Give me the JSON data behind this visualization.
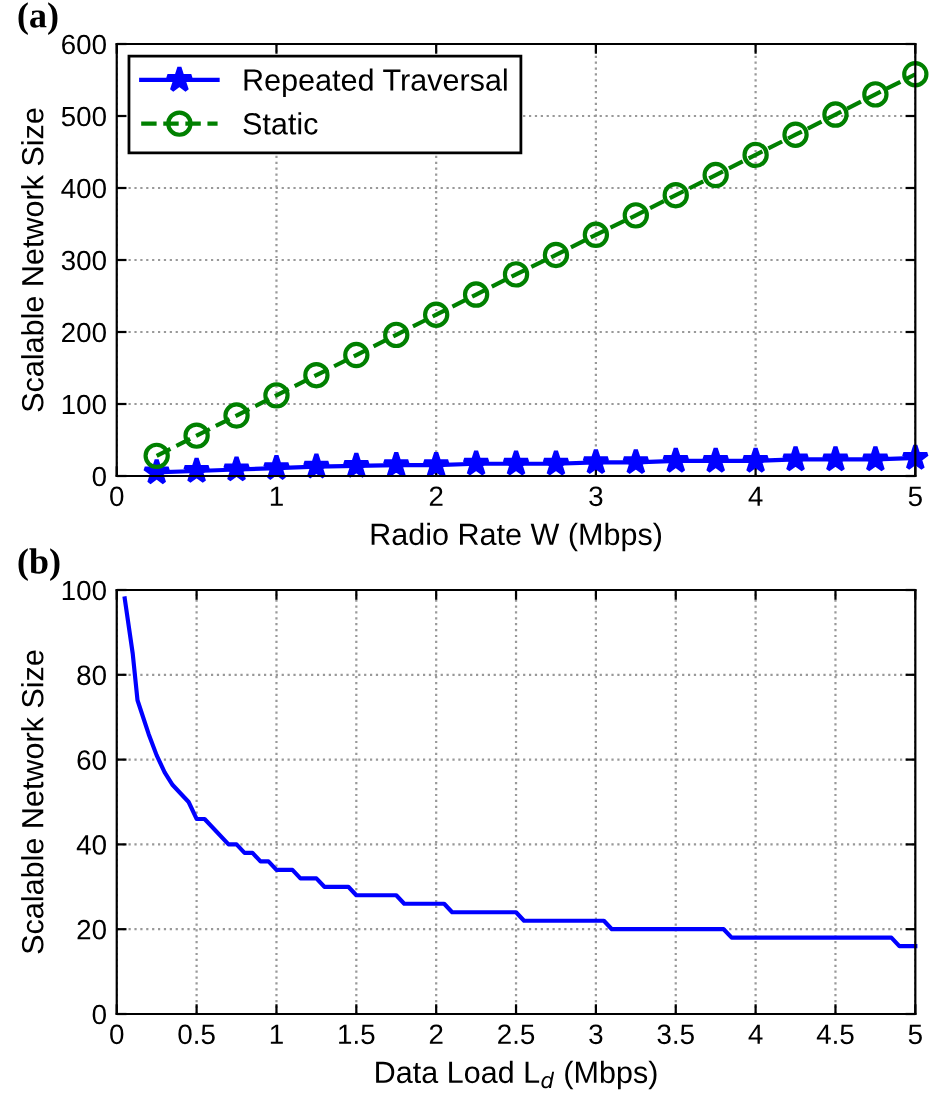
{
  "chart_data": [
    {
      "type": "line",
      "title": "(a)",
      "xlabel": "Radio Rate W (Mbps)",
      "ylabel": "Scalable Network Size",
      "xlim": [
        0,
        5
      ],
      "xticks": [
        0,
        1,
        2,
        3,
        4,
        5
      ],
      "ylim": [
        0,
        600
      ],
      "yticks": [
        0,
        100,
        200,
        300,
        400,
        500,
        600
      ],
      "grid": true,
      "legend": "top left",
      "x": [
        0.25,
        0.5,
        0.75,
        1,
        1.25,
        1.5,
        1.75,
        2,
        2.25,
        2.5,
        2.75,
        3,
        3.25,
        3.5,
        3.75,
        4,
        4.25,
        4.5,
        4.75,
        5
      ],
      "series": [
        {
          "name": "Repeated Traversal",
          "color": "#0000ff",
          "marker": "star",
          "line_style": "solid",
          "values": [
            5,
            7,
            9,
            11,
            13,
            14,
            15,
            15,
            17,
            17,
            17,
            19,
            19,
            21,
            21,
            21,
            23,
            23,
            23,
            25
          ]
        },
        {
          "name": "Static",
          "color": "#008000",
          "marker": "circle",
          "line_style": "dashed",
          "values": [
            28,
            56,
            84,
            112,
            140,
            168,
            196,
            224,
            252,
            280,
            307,
            335,
            362,
            390,
            418,
            446,
            474,
            502,
            530,
            558
          ]
        }
      ]
    },
    {
      "type": "line",
      "title": "(b)",
      "xlabel": "Data Load L$_{d}$ (Mbps)",
      "ylabel": "Scalable Network Size",
      "xlim": [
        0,
        5
      ],
      "xticks": [
        0,
        0.5,
        1,
        1.5,
        2,
        2.5,
        3,
        3.5,
        4,
        4.5,
        5
      ],
      "ylim": [
        0,
        100
      ],
      "yticks": [
        0,
        20,
        40,
        60,
        80,
        100
      ],
      "grid": true,
      "series": [
        {
          "color": "#0000ff",
          "line_style": "solid",
          "x": [
            0.05,
            0.1,
            0.13,
            0.2,
            0.25,
            0.3,
            0.35,
            0.45,
            0.5,
            0.55,
            0.7,
            0.75,
            0.8,
            0.85,
            0.9,
            0.95,
            1.0,
            1.1,
            1.15,
            1.25,
            1.3,
            1.45,
            1.5,
            1.75,
            1.8,
            2.05,
            2.1,
            2.5,
            2.55,
            3.05,
            3.1,
            3.8,
            3.85,
            4.85,
            4.9,
            5
          ],
          "values": [
            98,
            85,
            74,
            66,
            61,
            57,
            54,
            50,
            46,
            46,
            40,
            40,
            38,
            38,
            36,
            36,
            34,
            34,
            32,
            32,
            30,
            30,
            28,
            28,
            26,
            26,
            24,
            24,
            22,
            22,
            20,
            20,
            18,
            18,
            16,
            16
          ]
        }
      ]
    }
  ]
}
